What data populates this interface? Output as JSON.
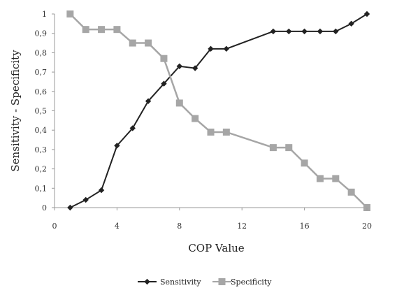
{
  "chart_data": {
    "type": "line",
    "xlabel": "COP Value",
    "ylabel": "Sensitivity - Specificity",
    "xlim": [
      0,
      20
    ],
    "ylim": [
      0,
      1
    ],
    "xticks": [
      0,
      4,
      8,
      12,
      16,
      20
    ],
    "yticks": [
      0,
      0.1,
      0.2,
      0.3,
      0.4,
      0.5,
      0.6,
      0.7,
      0.8,
      0.9,
      1
    ],
    "xtick_labels": [
      "0",
      "4",
      "8",
      "12",
      "16",
      "20"
    ],
    "ytick_labels": [
      "0",
      "0,1",
      "0,2",
      "0,3",
      "0,4",
      "0,5",
      "0,6",
      "0,7",
      "0,8",
      "0,9",
      "1"
    ],
    "grid": false,
    "legend_position": "bottom",
    "series": [
      {
        "name": "Sensitivity",
        "marker": "diamond",
        "color": "#222222",
        "x": [
          1,
          2,
          3,
          4,
          5,
          6,
          7,
          8,
          9,
          10,
          11,
          14,
          15,
          16,
          17,
          18,
          19,
          20
        ],
        "y": [
          0,
          0.04,
          0.09,
          0.32,
          0.41,
          0.55,
          0.64,
          0.73,
          0.72,
          0.82,
          0.82,
          0.91,
          0.91,
          0.91,
          0.91,
          0.91,
          0.95,
          1.0
        ]
      },
      {
        "name": "Specificity",
        "marker": "square",
        "color": "#a6a6a6",
        "x": [
          1,
          2,
          3,
          4,
          5,
          6,
          7,
          8,
          9,
          10,
          11,
          14,
          15,
          16,
          17,
          18,
          19,
          20
        ],
        "y": [
          1.0,
          0.92,
          0.92,
          0.92,
          0.85,
          0.85,
          0.77,
          0.54,
          0.46,
          0.39,
          0.39,
          0.31,
          0.31,
          0.23,
          0.15,
          0.15,
          0.08,
          0
        ]
      }
    ]
  }
}
